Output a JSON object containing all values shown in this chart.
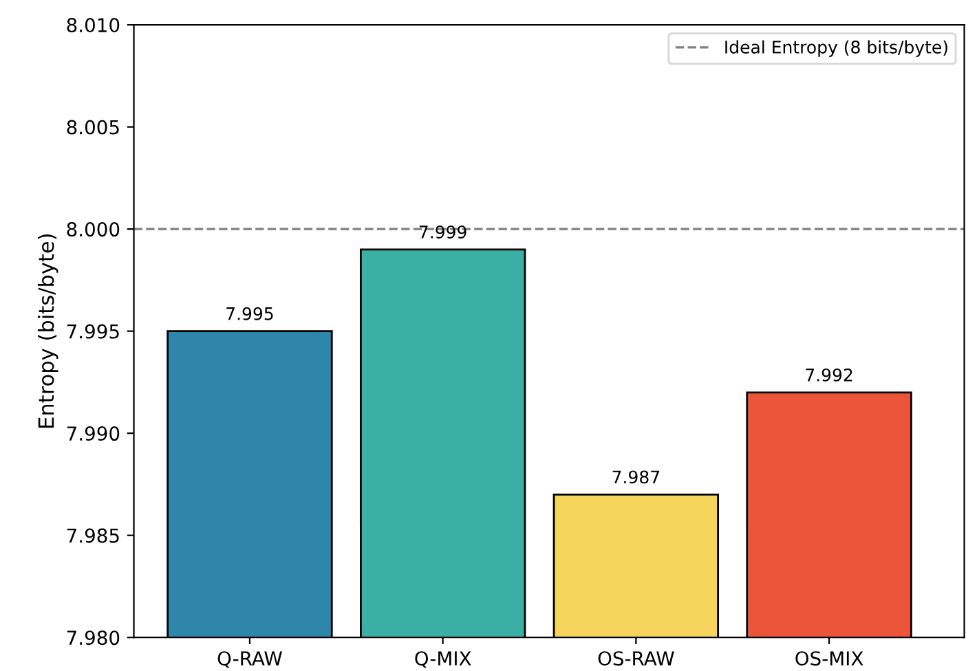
{
  "chart_data": {
    "type": "bar",
    "ylabel": "Entropy (bits/byte)",
    "categories": [
      "Q-RAW",
      "Q-MIX",
      "OS-RAW",
      "OS-MIX"
    ],
    "values": [
      7.995,
      7.999,
      7.987,
      7.992
    ],
    "colors": [
      "#2e86ab",
      "#3aafa3",
      "#f6d55c",
      "#ed553b"
    ],
    "data_labels": true,
    "ylim": [
      7.98,
      8.01
    ],
    "yticks": [
      {
        "value": 7.98,
        "label": "7.980"
      },
      {
        "value": 7.985,
        "label": "7.985"
      },
      {
        "value": 7.99,
        "label": "7.990"
      },
      {
        "value": 7.995,
        "label": "7.995"
      },
      {
        "value": 8.0,
        "label": "8.000"
      },
      {
        "value": 8.005,
        "label": "8.005"
      },
      {
        "value": 8.01,
        "label": "8.010"
      }
    ],
    "ref_lines": [
      {
        "axis": "y",
        "value": 8.0,
        "label": "Ideal Entropy (8 bits/byte)",
        "color": "#808080",
        "line_style": "dashed"
      }
    ],
    "legend": "top right",
    "grid": false
  }
}
